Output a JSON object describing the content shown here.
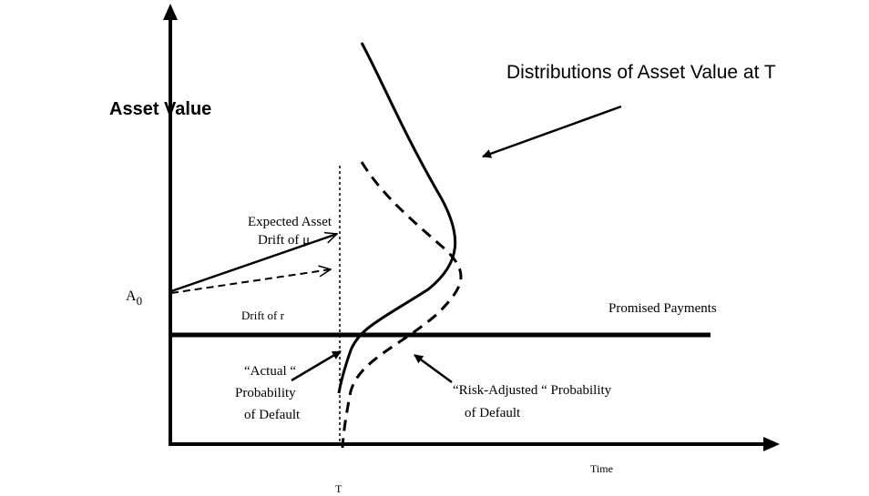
{
  "title": "Distributions of Asset Value at T",
  "y_axis_label": "Asset Value",
  "x_axis_label": "Time",
  "horizon_label": "T",
  "start_label": {
    "main": "A",
    "subscript": "0"
  },
  "expected_drift": [
    "Expected Asset",
    "Drift of μ"
  ],
  "risk_neutral_drift": "Drift of r",
  "barrier_label": "Promised Payments",
  "actual_default": [
    "“Actual “",
    "Probability",
    "of Default"
  ],
  "risk_adjusted_default": [
    "“Risk-Adjusted “ Probability",
    "of Default"
  ]
}
